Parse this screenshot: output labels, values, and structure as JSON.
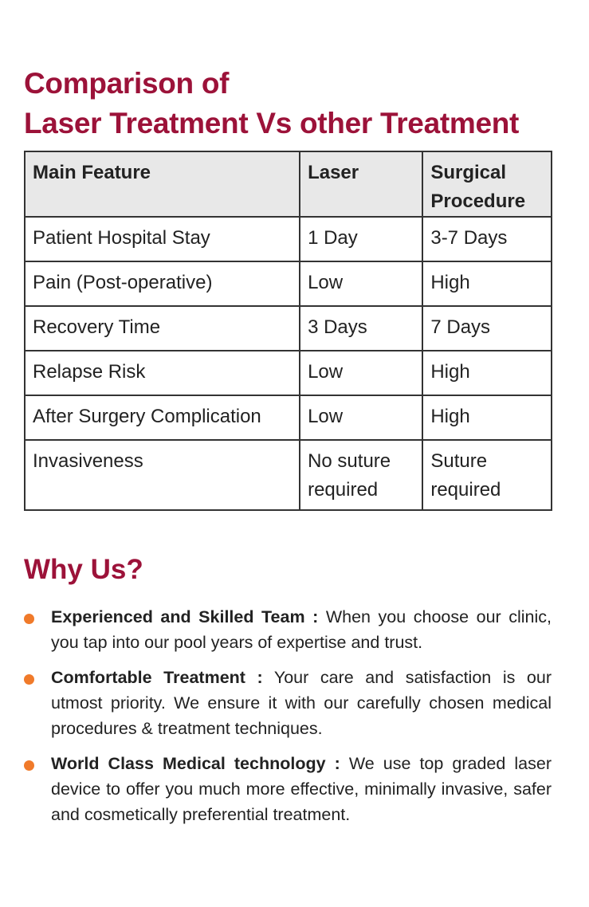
{
  "title": {
    "line1": "Comparison of",
    "line2": "Laser Treatment Vs other Treatment"
  },
  "table": {
    "headers": [
      "Main Feature",
      "Laser",
      "Surgical Procedure"
    ],
    "rows": [
      [
        "Patient Hospital Stay",
        "1 Day",
        "3-7 Days"
      ],
      [
        "Pain (Post-operative)",
        "Low",
        "High"
      ],
      [
        "Recovery Time",
        "3 Days",
        "7 Days"
      ],
      [
        "Relapse Risk",
        "Low",
        "High"
      ],
      [
        "After Surgery Complication",
        "Low",
        "High"
      ],
      [
        "Invasiveness",
        "No suture required",
        "Suture required"
      ]
    ]
  },
  "why_us": {
    "heading": "Why Us?",
    "bullet_color": "#f07a2a",
    "items": [
      {
        "label": "Experienced and Skilled Team :",
        "text": " When you choose our clinic, you tap into our pool years of expertise and trust."
      },
      {
        "label": "Comfortable Treatment :",
        "text": " Your care and satisfaction is our utmost priority. We ensure it with our carefully chosen medical procedures & treatment techniques."
      },
      {
        "label": "World Class Medical technology :",
        "text": " We use top graded laser device to offer you much more effective, minimally invasive, safer and cosmetically preferential treatment."
      }
    ]
  },
  "colors": {
    "accent": "#9c1239",
    "header_bg": "#e8e8e8"
  }
}
